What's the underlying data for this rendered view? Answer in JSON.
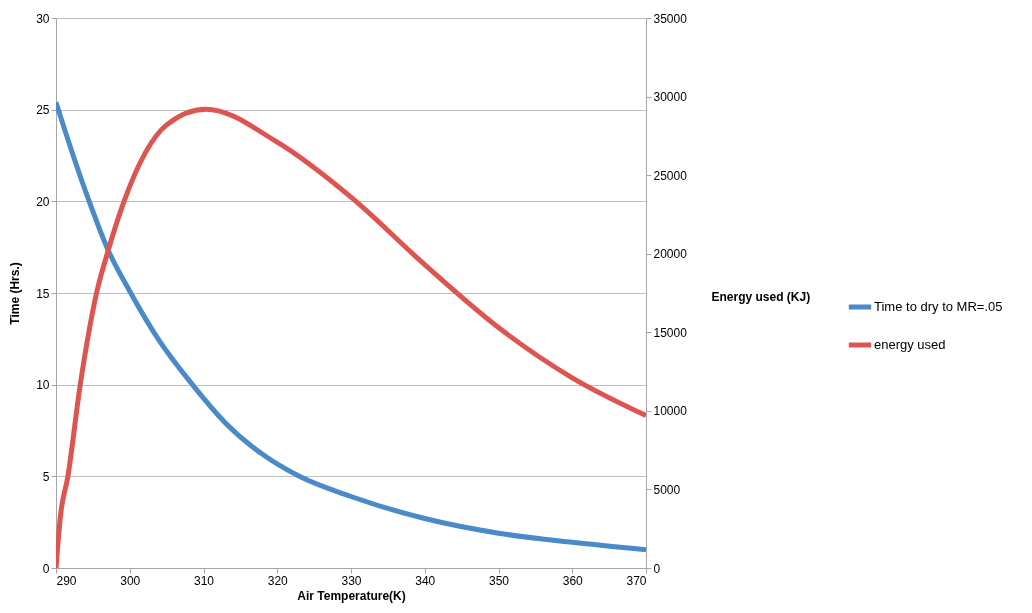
{
  "chart_data": {
    "type": "line",
    "xlabel": "Air Temperature(K)",
    "ylabel": "Time (Hrs.)",
    "y2label": "Energy used (KJ)",
    "xlim": [
      290,
      370
    ],
    "xticks": [
      290,
      300,
      310,
      320,
      330,
      340,
      350,
      360,
      370
    ],
    "ylim": [
      0,
      30
    ],
    "yticks": [
      0,
      5,
      10,
      15,
      20,
      25,
      30
    ],
    "y2lim": [
      0,
      35000
    ],
    "y2ticks": [
      0,
      5000,
      10000,
      15000,
      20000,
      25000,
      30000,
      35000
    ],
    "grid": "y",
    "legend": "right",
    "marker": "none",
    "line_style": "solid",
    "series": [
      {
        "name": "Time to dry to MR=.05",
        "color": "#4a8ac9",
        "x": [
          290,
          292,
          294.5,
          297,
          300,
          304,
          308.5,
          313,
          318,
          323,
          330,
          340,
          350,
          360,
          370
        ],
        "values": [
          25.4,
          22.9,
          20,
          17.4,
          15.1,
          12.4,
          10,
          7.9,
          6.2,
          5,
          3.9,
          2.7,
          1.9,
          1.4,
          1.0
        ]
      },
      {
        "name": "energy used",
        "color": "#dd5550",
        "axis": "y2",
        "x": [
          290,
          290.6,
          291.6,
          293.3,
          295.5,
          297.2,
          299.2,
          305,
          310.3,
          320,
          330,
          340,
          350,
          360,
          370
        ],
        "values": [
          0,
          3300,
          5800,
          11700,
          17500,
          20400,
          23300,
          28200,
          29200,
          27100,
          23600,
          19300,
          15300,
          12100,
          9700
        ]
      }
    ]
  }
}
